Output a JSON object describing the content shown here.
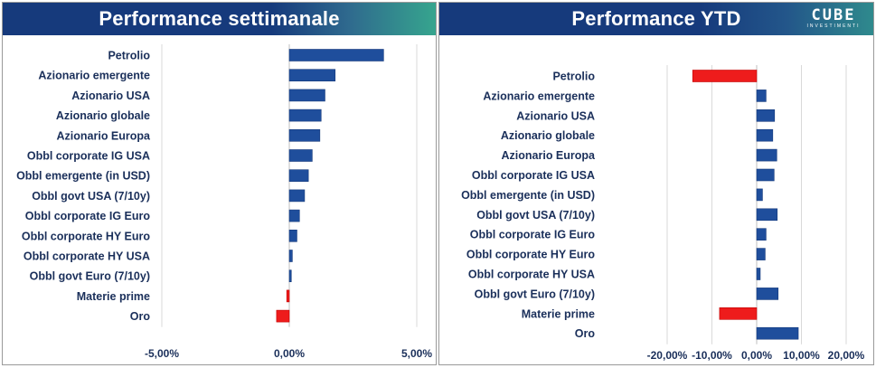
{
  "brand": {
    "logo_text": "CUBE",
    "logo_sub": "INVESTIMENTI"
  },
  "colors": {
    "positive": "#1f4e9c",
    "negative": "#ee1c1c",
    "label": "#1a2f5a",
    "grid": "#d9d9d9"
  },
  "chart_data": [
    {
      "type": "bar",
      "orientation": "horizontal",
      "title": "Performance settimanale",
      "categories": [
        "Petrolio",
        "Azionario emergente",
        "Azionario USA",
        "Azionario globale",
        "Azionario Europa",
        "Obbl corporate IG USA",
        "Obbl emergente (in USD)",
        "Obbl govt USA (7/10y)",
        "Obbl corporate IG Euro",
        "Obbl corporate HY Euro",
        "Obbl corporate HY USA",
        "Obbl govt Euro (7/10y)",
        "Materie prime",
        "Oro"
      ],
      "values": [
        3.7,
        1.8,
        1.4,
        1.25,
        1.2,
        0.9,
        0.75,
        0.6,
        0.4,
        0.3,
        0.12,
        0.08,
        -0.1,
        -0.5
      ],
      "xlim": [
        -5,
        5
      ],
      "xticks": [
        "-5,00%",
        "0,00%",
        "5,00%"
      ],
      "xtick_values": [
        -5,
        0,
        5
      ],
      "grid": true,
      "xlabel": "",
      "ylabel": ""
    },
    {
      "type": "bar",
      "orientation": "horizontal",
      "title": "Performance YTD",
      "categories": [
        "Petrolio",
        "Azionario emergente",
        "Azionario USA",
        "Azionario globale",
        "Azionario Europa",
        "Obbl corporate IG USA",
        "Obbl emergente (in USD)",
        "Obbl govt USA (7/10y)",
        "Obbl corporate IG Euro",
        "Obbl corporate HY Euro",
        "Obbl corporate HY USA",
        "Obbl govt Euro (7/10y)",
        "Materie prime",
        "Oro"
      ],
      "values": [
        -14.3,
        2.1,
        4.0,
        3.6,
        4.5,
        3.9,
        1.3,
        4.6,
        2.1,
        1.9,
        0.8,
        4.8,
        -8.3,
        9.3
      ],
      "xlim": [
        -20,
        20
      ],
      "xticks": [
        "-20,00%",
        "-10,00%",
        "0,00%",
        "10,00%",
        "20,00%"
      ],
      "xtick_values": [
        -20,
        -10,
        0,
        10,
        20
      ],
      "grid": true,
      "xlabel": "",
      "ylabel": ""
    }
  ]
}
